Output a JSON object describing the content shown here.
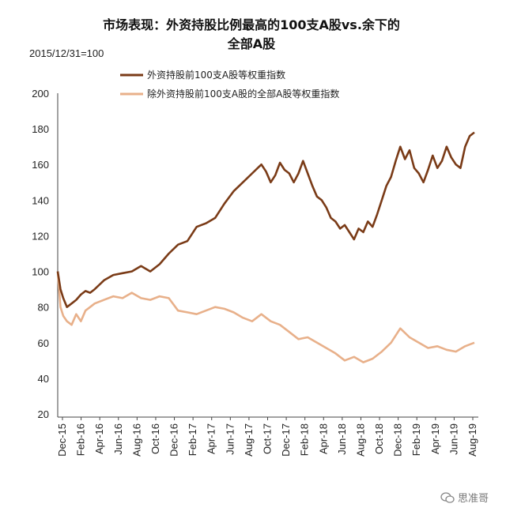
{
  "chart_data": {
    "type": "line",
    "title": [
      "市场表现：外资持股比例最高的100支A股vs.余下的",
      "全部A股"
    ],
    "subtitle": "2015/12/31=100",
    "xlabel": "",
    "ylabel": "",
    "ylim": [
      20,
      200
    ],
    "yticks": [
      20,
      40,
      60,
      80,
      100,
      120,
      140,
      160,
      180,
      200
    ],
    "xlim": [
      0,
      45
    ],
    "xticks": [
      "Dec-15",
      "Feb-16",
      "Apr-16",
      "Jun-16",
      "Aug-16",
      "Oct-16",
      "Dec-16",
      "Feb-17",
      "Apr-17",
      "Jun-17",
      "Aug-17",
      "Oct-17",
      "Dec-17",
      "Feb-18",
      "Apr-18",
      "Jun-18",
      "Aug-18",
      "Oct-18",
      "Dec-18",
      "Feb-19",
      "Apr-19",
      "Jun-19",
      "Aug-19"
    ],
    "grid": false,
    "legend_position": "top-center",
    "series": [
      {
        "name": "外资持股前100支A股等权重指数",
        "color": "#7a3b17",
        "x": [
          0,
          0.3,
          0.6,
          1,
          1.5,
          2,
          2.5,
          3,
          3.5,
          4,
          5,
          6,
          7,
          8,
          9,
          10,
          11,
          12,
          13,
          14,
          15,
          16,
          17,
          18,
          19,
          20,
          21,
          22,
          22.5,
          23,
          23.5,
          24,
          24.5,
          25,
          25.5,
          26,
          26.5,
          27,
          27.5,
          28,
          28.5,
          29,
          29.5,
          30,
          30.5,
          31,
          31.5,
          32,
          32.5,
          33,
          33.5,
          34,
          34.5,
          35,
          35.5,
          36,
          36.5,
          37,
          37.5,
          38,
          38.5,
          39,
          39.5,
          40,
          40.5,
          41,
          41.5,
          42,
          42.5,
          43,
          43.5,
          44,
          44.5,
          45
        ],
        "values": [
          100,
          90,
          85,
          80,
          82,
          84,
          87,
          89,
          88,
          90,
          95,
          98,
          99,
          100,
          103,
          100,
          104,
          110,
          115,
          117,
          125,
          127,
          130,
          138,
          145,
          150,
          155,
          160,
          156,
          150,
          154,
          161,
          157,
          155,
          150,
          155,
          162,
          155,
          148,
          142,
          140,
          136,
          130,
          128,
          124,
          126,
          122,
          118,
          124,
          122,
          128,
          125,
          132,
          140,
          148,
          153,
          162,
          170,
          163,
          168,
          158,
          155,
          150,
          157,
          165,
          158,
          162,
          170,
          164,
          160,
          158,
          170,
          176,
          178
        ]
      },
      {
        "name": "除外资持股前100支A股的全部A股等权重指数",
        "color": "#e8b08a",
        "x": [
          0,
          0.3,
          0.6,
          1,
          1.5,
          2,
          2.5,
          3,
          3.5,
          4,
          5,
          6,
          7,
          8,
          9,
          10,
          11,
          12,
          13,
          14,
          15,
          16,
          17,
          18,
          19,
          20,
          21,
          22,
          23,
          24,
          25,
          26,
          27,
          28,
          29,
          30,
          31,
          32,
          33,
          34,
          35,
          36,
          37,
          38,
          39,
          40,
          41,
          42,
          43,
          44,
          45
        ],
        "values": [
          100,
          80,
          75,
          72,
          70,
          76,
          72,
          78,
          80,
          82,
          84,
          86,
          85,
          88,
          85,
          84,
          86,
          85,
          78,
          77,
          76,
          78,
          80,
          79,
          77,
          74,
          72,
          76,
          72,
          70,
          66,
          62,
          63,
          60,
          57,
          54,
          50,
          52,
          49,
          51,
          55,
          60,
          68,
          63,
          60,
          57,
          58,
          56,
          55,
          58,
          60
        ]
      }
    ]
  },
  "watermark": "思准哥"
}
